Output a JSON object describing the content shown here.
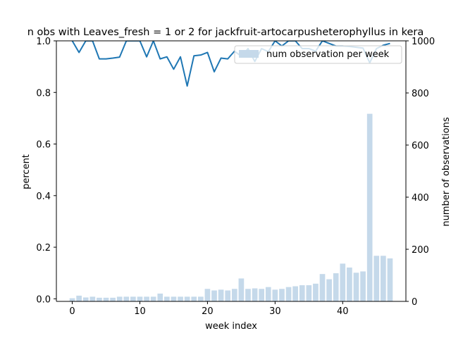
{
  "chart_data": {
    "type": "bar+line",
    "title": "n obs with Leaves_fresh = 1 or 2 for jackfruit-artocarpusheterophyllus in kera",
    "xlabel": "week index",
    "ylabel_left": "percent",
    "ylabel_right": "number of observations",
    "xlim": [
      -2.35,
      49.35
    ],
    "ylim_left": [
      -0.01,
      1.0
    ],
    "ylim_right": [
      0,
      1000
    ],
    "x_ticks": [
      0,
      10,
      20,
      30,
      40
    ],
    "y_left_ticks": [
      "0.0",
      "0.2",
      "0.4",
      "0.6",
      "0.8",
      "1.0"
    ],
    "y_right_ticks": [
      "0",
      "200",
      "400",
      "600",
      "800",
      "1000"
    ],
    "legend": {
      "label": "num observation per week",
      "placement": "upper right"
    },
    "colors": {
      "bar": "#c5d9ea",
      "line": "#1f77b4"
    },
    "bars": {
      "name": "num observation per week",
      "x": [
        0,
        1,
        2,
        3,
        4,
        5,
        6,
        7,
        8,
        9,
        10,
        11,
        12,
        13,
        14,
        15,
        16,
        17,
        18,
        19,
        20,
        21,
        22,
        23,
        24,
        25,
        26,
        27,
        28,
        29,
        30,
        31,
        32,
        33,
        34,
        35,
        36,
        37,
        38,
        39,
        40,
        41,
        42,
        43,
        44,
        45,
        46,
        47
      ],
      "values": [
        12,
        22,
        15,
        18,
        14,
        14,
        14,
        18,
        18,
        18,
        18,
        18,
        18,
        30,
        18,
        18,
        18,
        18,
        18,
        18,
        48,
        42,
        45,
        42,
        48,
        88,
        48,
        50,
        48,
        55,
        45,
        48,
        55,
        58,
        62,
        62,
        68,
        105,
        85,
        108,
        145,
        130,
        110,
        115,
        720,
        175,
        175,
        165
      ]
    },
    "line": {
      "x": [
        0,
        1,
        2,
        3,
        4,
        5,
        6,
        7,
        8,
        9,
        10,
        11,
        12,
        13,
        14,
        15,
        16,
        17,
        18,
        19,
        20,
        21,
        22,
        23,
        24,
        25,
        26,
        27,
        28,
        29,
        30,
        31,
        32,
        33,
        34,
        35,
        36,
        37,
        38,
        39,
        40,
        41,
        42,
        43,
        44,
        45,
        46,
        47
      ],
      "values": [
        1.0,
        0.955,
        1.0,
        1.0,
        0.93,
        0.93,
        0.933,
        0.937,
        1.0,
        1.0,
        1.0,
        0.938,
        1.0,
        0.93,
        0.938,
        0.89,
        0.938,
        0.825,
        0.942,
        0.945,
        0.955,
        0.88,
        0.933,
        0.93,
        0.96,
        0.94,
        0.97,
        0.92,
        0.97,
        0.958,
        1.0,
        0.98,
        1.0,
        1.0,
        0.97,
        0.97,
        0.96,
        1.0,
        0.99,
        0.98,
        0.98,
        0.978,
        0.975,
        0.972,
        0.915,
        0.97,
        0.983,
        0.99
      ]
    }
  }
}
